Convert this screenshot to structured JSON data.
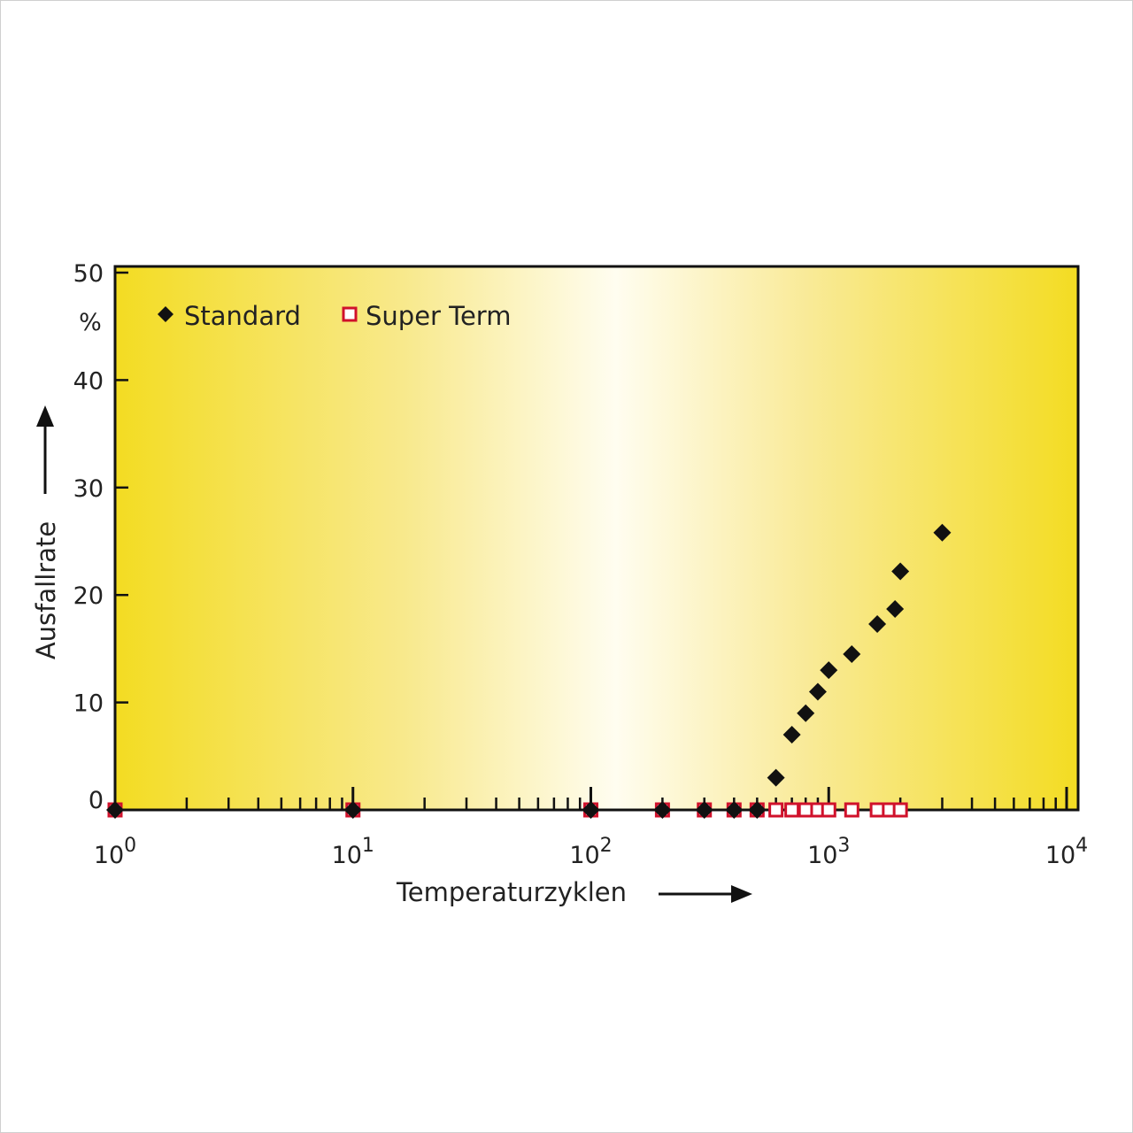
{
  "chart_data": {
    "type": "scatter",
    "x_scale": "log",
    "xlim": [
      1,
      10000
    ],
    "ylim": [
      0,
      50
    ],
    "xlabel": "Temperaturzyklen",
    "ylabel": "Ausfallrate",
    "y_unit": "%",
    "x_ticks": [
      {
        "value": 1,
        "base": "10",
        "exp": "0"
      },
      {
        "value": 10,
        "base": "10",
        "exp": "1"
      },
      {
        "value": 100,
        "base": "10",
        "exp": "2"
      },
      {
        "value": 1000,
        "base": "10",
        "exp": "3"
      },
      {
        "value": 10000,
        "base": "10",
        "exp": "4"
      }
    ],
    "y_ticks": [
      {
        "value": 0,
        "label": "0"
      },
      {
        "value": 10,
        "label": "10"
      },
      {
        "value": 20,
        "label": "20"
      },
      {
        "value": 30,
        "label": "30"
      },
      {
        "value": 40,
        "label": "40"
      },
      {
        "value": 50,
        "label": "50"
      }
    ],
    "legend_position": "top-left",
    "grid": false,
    "background": "yellow-white horizontal gradient",
    "series": [
      {
        "name": "Standard",
        "marker": "filled-diamond",
        "color": "#111111",
        "points": [
          [
            1,
            0
          ],
          [
            10,
            0
          ],
          [
            100,
            0
          ],
          [
            200,
            0
          ],
          [
            300,
            0
          ],
          [
            400,
            0
          ],
          [
            500,
            0
          ],
          [
            600,
            3
          ],
          [
            700,
            7
          ],
          [
            800,
            9
          ],
          [
            900,
            11
          ],
          [
            1000,
            13
          ],
          [
            1250,
            14.5
          ],
          [
            1600,
            17.3
          ],
          [
            1900,
            18.7
          ],
          [
            2000,
            22.2
          ],
          [
            3000,
            25.8
          ]
        ]
      },
      {
        "name": "Super Term",
        "marker": "open-square",
        "color": "#d0112b",
        "points": [
          [
            1,
            0
          ],
          [
            10,
            0
          ],
          [
            100,
            0
          ],
          [
            200,
            0
          ],
          [
            300,
            0
          ],
          [
            400,
            0
          ],
          [
            500,
            0
          ],
          [
            600,
            0
          ],
          [
            700,
            0
          ],
          [
            800,
            0
          ],
          [
            900,
            0
          ],
          [
            1000,
            0
          ],
          [
            1250,
            0
          ],
          [
            1600,
            0
          ],
          [
            1800,
            0
          ],
          [
            2000,
            0
          ]
        ]
      }
    ]
  }
}
